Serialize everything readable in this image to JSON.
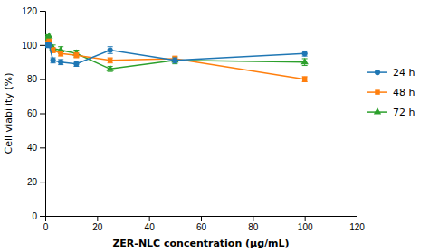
{
  "chart_data": {
    "type": "line",
    "xlabel": "ZER-NLC concentration (μg/mL)",
    "ylabel": "Cell viability (%)",
    "x": [
      0.5,
      1.5,
      3,
      6,
      12,
      25,
      50,
      100
    ],
    "series": [
      {
        "name": "24 h",
        "marker": "circle",
        "values": [
          100,
          100,
          91,
          90,
          89,
          97,
          91,
          95
        ],
        "errors": [
          1.5,
          1.5,
          1.5,
          1.5,
          1.5,
          2,
          1.5,
          1.5
        ]
      },
      {
        "name": "48 h",
        "marker": "square",
        "values": [
          101,
          102,
          97,
          95,
          94,
          91,
          92,
          80
        ],
        "errors": [
          1.5,
          1.5,
          1.5,
          1.5,
          1.5,
          1.5,
          1.5,
          1.5
        ]
      },
      {
        "name": "72 h",
        "marker": "triangle",
        "values": [
          104,
          105,
          98,
          97,
          95,
          86,
          91,
          90
        ],
        "errors": [
          2,
          2,
          2,
          2,
          2,
          1.5,
          2,
          2
        ]
      }
    ],
    "xlim": [
      0,
      120
    ],
    "ylim": [
      0,
      120
    ],
    "xticks": [
      0,
      20,
      40,
      60,
      80,
      100,
      120
    ],
    "yticks": [
      0,
      20,
      40,
      60,
      80,
      100,
      120
    ],
    "grid": false,
    "legend": "right"
  }
}
